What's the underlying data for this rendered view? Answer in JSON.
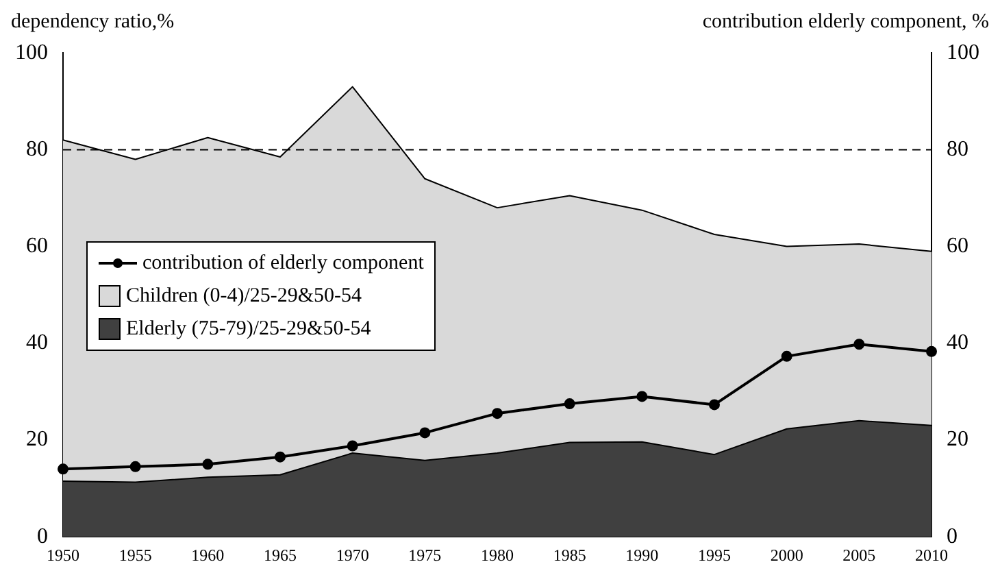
{
  "chart_data": {
    "type": "area",
    "stacked": true,
    "ylabel": "dependency ratio,%",
    "y2label": "contribution elderly component, %",
    "categories": [
      "1950",
      "1955",
      "1960",
      "1965",
      "1970",
      "1975",
      "1980",
      "1985",
      "1990",
      "1995",
      "2000",
      "2005",
      "2010"
    ],
    "series": [
      {
        "name": "Elderly (75-79)/25-29&50-54",
        "color": "#404040",
        "values": [
          11.5,
          11.3,
          12.3,
          12.8,
          17.3,
          15.8,
          17.3,
          19.5,
          19.6,
          17,
          22.3,
          24,
          23
        ]
      },
      {
        "name": "Children (0-4)/25-29&50-54",
        "color": "#d9d9d9",
        "values": [
          70.5,
          66.7,
          70.2,
          65.7,
          75.7,
          58.2,
          50.7,
          51,
          47.9,
          45.5,
          37.7,
          36.5,
          36
        ]
      },
      {
        "name": "contribution of elderly component",
        "type": "line",
        "axis": "y2",
        "color": "#000000",
        "marker": "circle",
        "values": [
          14,
          14.5,
          15,
          16.5,
          18.8,
          21.5,
          25.5,
          27.5,
          29,
          27.3,
          37.3,
          39.8,
          38.3
        ]
      }
    ],
    "ylim": [
      0,
      100
    ],
    "yticks": [
      0,
      20,
      40,
      60,
      80,
      100
    ],
    "y2lim": [
      0,
      100
    ],
    "y2ticks": [
      0,
      20,
      40,
      60,
      80,
      100
    ],
    "ref_lines": [
      {
        "axis": "y",
        "value": 80,
        "color": "#000000",
        "line_style": "dashed"
      }
    ],
    "legend": "left",
    "grid": false
  }
}
